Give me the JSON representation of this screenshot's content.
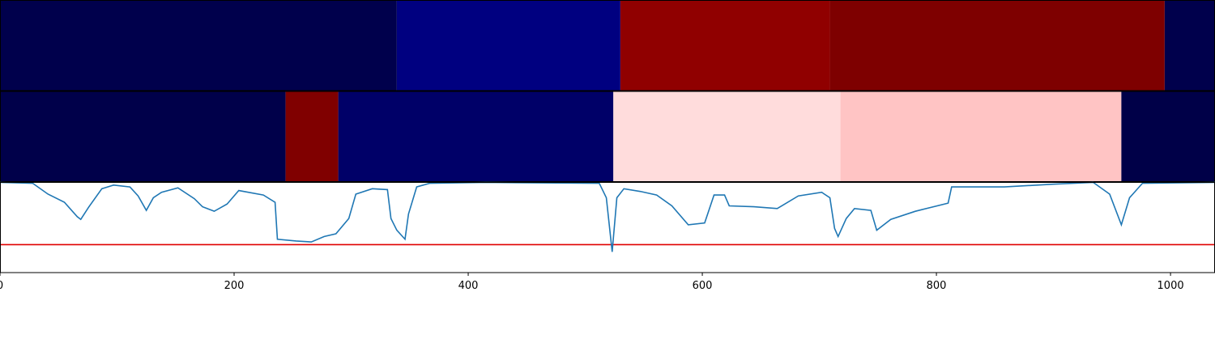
{
  "chart_data": [
    {
      "type": "segments",
      "xlim": [
        0,
        1038
      ],
      "bounds": [
        0,
        339,
        530,
        709,
        995,
        1038
      ],
      "colors": [
        "#00004c",
        "#000080",
        "#900000",
        "#7e0000",
        "#00004c"
      ]
    },
    {
      "type": "segments",
      "xlim": [
        0,
        1038
      ],
      "bounds": [
        0,
        244,
        289,
        524,
        718,
        958,
        1038
      ],
      "colors": [
        "#00004a",
        "#800000",
        "#000068",
        "#ffdcdc",
        "#ffc4c4",
        "#000048"
      ]
    },
    {
      "type": "line",
      "xlim": [
        0,
        1038
      ],
      "ylim": [
        0,
        1
      ],
      "xticks": [
        0,
        200,
        400,
        600,
        800,
        1000
      ],
      "color": "#1f77b4",
      "hline": 0.31,
      "hline_color": "#e00000",
      "x": [
        0,
        28,
        41,
        55,
        66,
        69,
        76,
        87,
        97,
        111,
        118,
        125,
        131,
        138,
        152,
        166,
        173,
        183,
        194,
        204,
        225,
        235,
        237,
        253,
        266,
        277,
        287,
        298,
        304,
        318,
        331,
        334,
        339,
        346,
        349,
        356,
        367,
        415,
        512,
        518,
        523,
        527,
        533,
        547,
        561,
        574,
        588,
        602,
        610,
        619,
        623,
        644,
        664,
        682,
        702,
        709,
        713,
        716,
        723,
        730,
        744,
        749,
        761,
        782,
        810,
        813,
        858,
        900,
        934,
        948,
        958,
        965,
        976,
        1038
      ],
      "values": [
        1.0,
        0.99,
        0.87,
        0.78,
        0.62,
        0.59,
        0.73,
        0.93,
        0.97,
        0.95,
        0.85,
        0.69,
        0.83,
        0.89,
        0.94,
        0.82,
        0.73,
        0.68,
        0.76,
        0.91,
        0.86,
        0.78,
        0.37,
        0.35,
        0.34,
        0.4,
        0.43,
        0.6,
        0.87,
        0.93,
        0.92,
        0.6,
        0.47,
        0.37,
        0.65,
        0.95,
        0.99,
        1.0,
        0.99,
        0.83,
        0.23,
        0.83,
        0.93,
        0.9,
        0.86,
        0.74,
        0.53,
        0.55,
        0.86,
        0.86,
        0.74,
        0.73,
        0.71,
        0.85,
        0.89,
        0.83,
        0.49,
        0.4,
        0.6,
        0.71,
        0.69,
        0.47,
        0.59,
        0.68,
        0.77,
        0.95,
        0.95,
        0.98,
        1.0,
        0.87,
        0.53,
        0.83,
        0.99,
        1.0
      ]
    }
  ]
}
